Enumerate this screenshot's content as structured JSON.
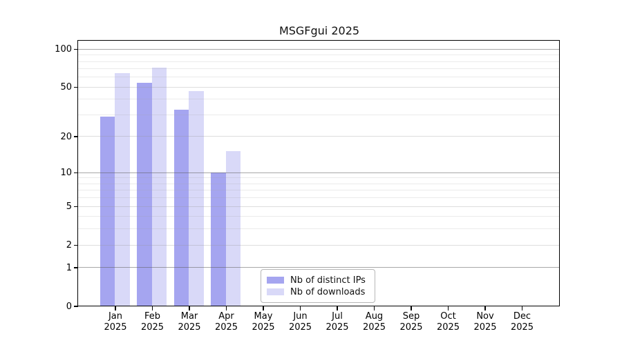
{
  "title": "MSGFgui 2025",
  "chart_data": {
    "type": "bar",
    "title": "MSGFgui 2025",
    "categories": [
      "Jan 2025",
      "Feb 2025",
      "Mar 2025",
      "Apr 2025",
      "May 2025",
      "Jun 2025",
      "Jul 2025",
      "Aug 2025",
      "Sep 2025",
      "Oct 2025",
      "Nov 2025",
      "Dec 2025"
    ],
    "month_labels": [
      "Jan",
      "Feb",
      "Mar",
      "Apr",
      "May",
      "Jun",
      "Jul",
      "Aug",
      "Sep",
      "Oct",
      "Nov",
      "Dec"
    ],
    "year_label": "2025",
    "series": [
      {
        "name": "Nb of distinct IPs",
        "color": "#a5a5f0",
        "values": [
          29,
          54,
          33,
          10,
          null,
          null,
          null,
          null,
          null,
          null,
          null,
          null
        ]
      },
      {
        "name": "Nb of downloads",
        "color": "#d9d9f8",
        "values": [
          64,
          71,
          46,
          15,
          null,
          null,
          null,
          null,
          null,
          null,
          null,
          null
        ]
      }
    ],
    "xlabel": "",
    "ylabel": "",
    "y_axis": {
      "scale": "log1p",
      "ticks": [
        0,
        1,
        2,
        5,
        10,
        20,
        50,
        100
      ],
      "minor_ticks": [
        3,
        4,
        6,
        7,
        8,
        9,
        30,
        40,
        60,
        70,
        80,
        90
      ],
      "emphasized_gridlines": [
        1,
        10,
        100
      ],
      "ylim": [
        0,
        115.5
      ]
    },
    "grid": "horizontal",
    "legend": {
      "position": "bottom-center-inside",
      "entries": [
        "Nb of distinct IPs",
        "Nb of downloads"
      ]
    }
  }
}
